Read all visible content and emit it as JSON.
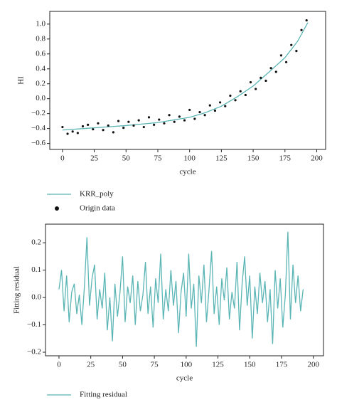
{
  "chart_data": [
    {
      "type": "line",
      "xlabel": "cycle",
      "ylabel": "HI",
      "xlim": [
        -10,
        207
      ],
      "ylim": [
        -0.68,
        1.17
      ],
      "xticks": [
        0,
        25,
        50,
        75,
        100,
        125,
        150,
        175,
        200
      ],
      "yticks": [
        {
          "value": -0.6,
          "label": "−0.6"
        },
        {
          "value": -0.4,
          "label": "−0.4"
        },
        {
          "value": -0.2,
          "label": "−0.2"
        },
        {
          "value": 0,
          "label": "0.0"
        },
        {
          "value": 0.2,
          "label": "0.2"
        },
        {
          "value": 0.4,
          "label": "0.4"
        },
        {
          "value": 0.6,
          "label": "0.6"
        },
        {
          "value": 0.8,
          "label": "0.8"
        },
        {
          "value": 1.0,
          "label": "1.0"
        }
      ],
      "series": [
        {
          "name": "KRR_poly",
          "type": "line",
          "color": "#5bb5b5",
          "x": [
            0,
            25,
            50,
            75,
            100,
            112,
            125,
            137,
            150,
            162,
            175,
            185,
            193
          ],
          "values": [
            -0.42,
            -0.39,
            -0.36,
            -0.32,
            -0.25,
            -0.19,
            -0.1,
            0.02,
            0.17,
            0.35,
            0.55,
            0.77,
            1.02
          ]
        },
        {
          "name": "Origin data",
          "type": "scatter",
          "color": "#111111",
          "x": [
            0,
            4,
            8,
            12,
            16,
            20,
            24,
            28,
            32,
            36,
            40,
            44,
            48,
            52,
            56,
            60,
            64,
            68,
            72,
            76,
            80,
            84,
            88,
            92,
            96,
            100,
            104,
            108,
            112,
            116,
            120,
            124,
            128,
            132,
            136,
            140,
            144,
            148,
            152,
            156,
            160,
            164,
            168,
            172,
            176,
            180,
            184,
            188,
            192
          ],
          "values": [
            -0.38,
            -0.47,
            -0.44,
            -0.46,
            -0.37,
            -0.35,
            -0.41,
            -0.33,
            -0.42,
            -0.36,
            -0.45,
            -0.3,
            -0.39,
            -0.31,
            -0.36,
            -0.29,
            -0.38,
            -0.25,
            -0.35,
            -0.28,
            -0.33,
            -0.22,
            -0.31,
            -0.24,
            -0.29,
            -0.15,
            -0.27,
            -0.18,
            -0.22,
            -0.09,
            -0.16,
            -0.05,
            -0.1,
            0.04,
            -0.02,
            0.1,
            0.05,
            0.22,
            0.13,
            0.28,
            0.24,
            0.41,
            0.36,
            0.58,
            0.49,
            0.72,
            0.64,
            0.92,
            1.05
          ]
        }
      ]
    },
    {
      "type": "line",
      "xlabel": "cycle",
      "ylabel": "Fitting residual",
      "xlim": [
        -10.6,
        208
      ],
      "ylim": [
        -0.213,
        0.268
      ],
      "xticks": [
        0,
        25,
        50,
        75,
        100,
        125,
        150,
        175,
        200
      ],
      "yticks": [
        {
          "value": -0.2,
          "label": "−0.2"
        },
        {
          "value": -0.1,
          "label": "−0.1"
        },
        {
          "value": 0,
          "label": "0.0"
        },
        {
          "value": 0.1,
          "label": "0.1"
        },
        {
          "value": 0.2,
          "label": "0.2"
        }
      ],
      "series": [
        {
          "name": "Fitting residual",
          "type": "line",
          "color": "#5bb5b5",
          "x": [
            0,
            2,
            4,
            6,
            8,
            10,
            12,
            14,
            16,
            18,
            20,
            22,
            24,
            26,
            28,
            30,
            32,
            34,
            36,
            38,
            40,
            42,
            44,
            46,
            48,
            50,
            52,
            54,
            56,
            58,
            60,
            62,
            64,
            66,
            68,
            70,
            72,
            74,
            76,
            78,
            80,
            82,
            84,
            86,
            88,
            90,
            92,
            94,
            96,
            98,
            100,
            102,
            104,
            106,
            108,
            110,
            112,
            114,
            116,
            118,
            120,
            122,
            124,
            126,
            128,
            130,
            132,
            134,
            136,
            138,
            140,
            142,
            144,
            146,
            148,
            150,
            152,
            154,
            156,
            158,
            160,
            162,
            164,
            166,
            168,
            170,
            172,
            174,
            176,
            178,
            180,
            182,
            184,
            186,
            188,
            190,
            192
          ],
          "values": [
            0.03,
            0.1,
            -0.05,
            0.08,
            -0.09,
            0.02,
            0.05,
            -0.06,
            0.01,
            -0.1,
            0.04,
            0.22,
            -0.03,
            0.07,
            0.12,
            -0.08,
            0.03,
            -0.04,
            0.09,
            -0.12,
            0.0,
            -0.16,
            0.05,
            -0.07,
            0.02,
            0.15,
            -0.09,
            0.04,
            -0.02,
            0.08,
            -0.1,
            0.06,
            -0.05,
            0.01,
            0.13,
            -0.06,
            0.04,
            -0.11,
            0.07,
            -0.02,
            0.16,
            -0.08,
            0.03,
            -0.05,
            0.1,
            -0.03,
            0.06,
            -0.13,
            0.02,
            0.09,
            -0.07,
            0.16,
            -0.04,
            0.05,
            -0.18,
            0.08,
            -0.02,
            0.12,
            -0.09,
            0.03,
            0.17,
            -0.06,
            0.04,
            -0.1,
            0.07,
            -0.01,
            0.11,
            -0.08,
            0.02,
            -0.04,
            0.13,
            -0.12,
            0.05,
            0.15,
            -0.03,
            0.08,
            -0.15,
            0.04,
            -0.06,
            0.09,
            -0.02,
            0.06,
            -0.09,
            0.03,
            -0.17,
            0.1,
            -0.04,
            0.07,
            -0.11,
            0.01,
            0.24,
            -0.08,
            0.12,
            -0.02,
            0.08,
            -0.05,
            0.03
          ]
        }
      ]
    }
  ]
}
